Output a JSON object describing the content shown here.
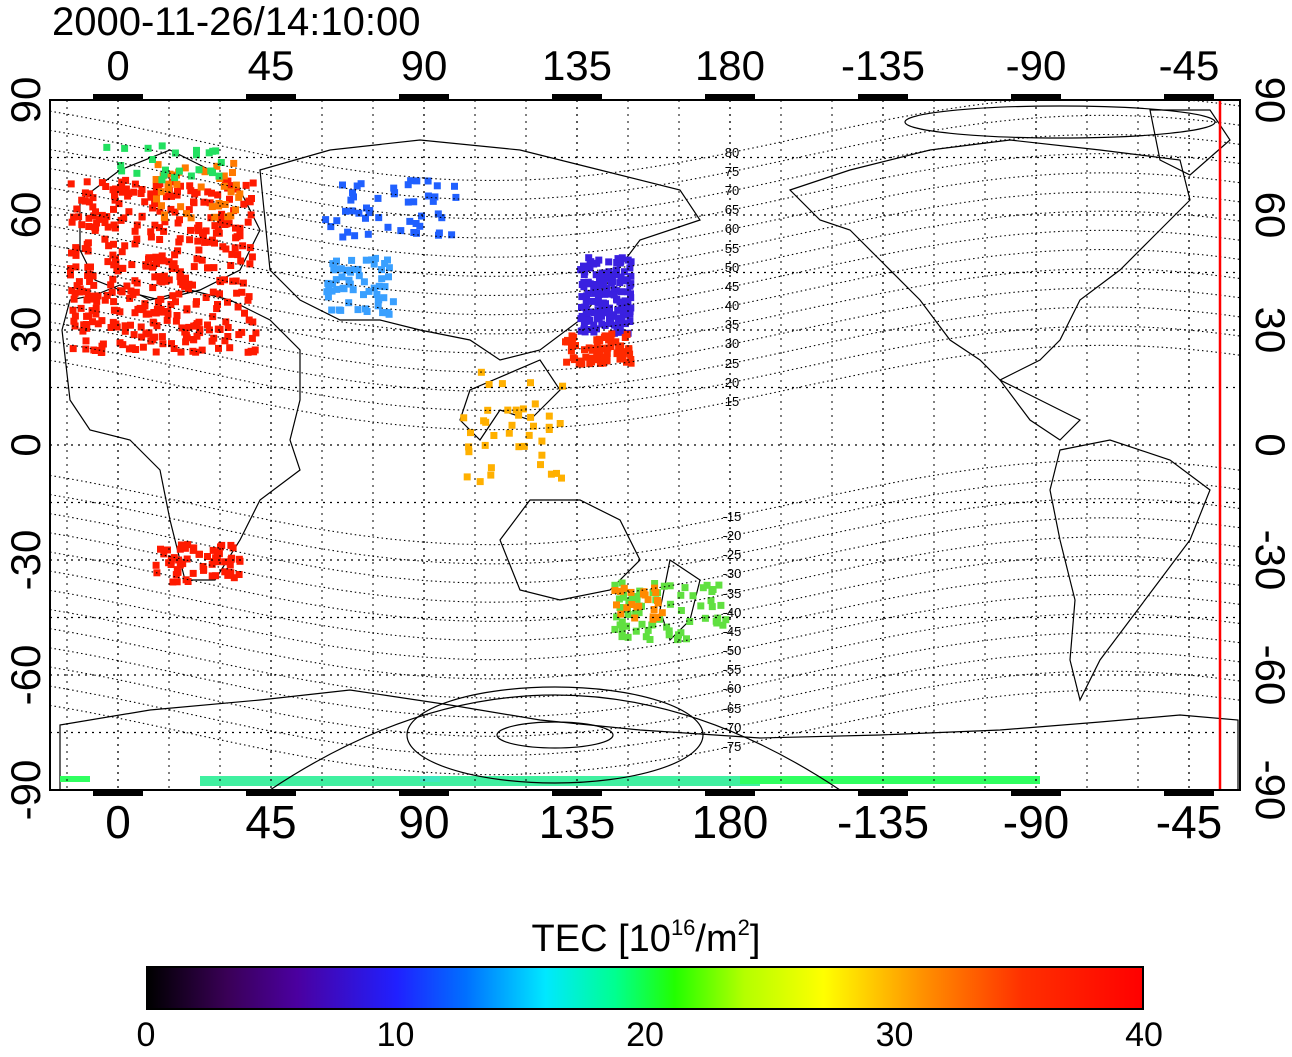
{
  "title": "2000-11-26/14:10:00",
  "map": {
    "top_lon_ticks": [
      "0",
      "45",
      "90",
      "135",
      "180",
      "-135",
      "-90",
      "-45"
    ],
    "bottom_lon_ticks": [
      "0",
      "45",
      "90",
      "135",
      "180",
      "-135",
      "-90",
      "-45"
    ],
    "lat_ticks_left": [
      "90",
      "60",
      "30",
      "0",
      "-30",
      "-60",
      "-90"
    ],
    "lat_ticks_right": [
      "90",
      "60",
      "30",
      "0",
      "-30",
      "-60",
      "-90"
    ],
    "magnetic_lat_labels": [
      "80",
      "75",
      "70",
      "65",
      "60",
      "55",
      "50",
      "45",
      "40",
      "35",
      "30",
      "25",
      "20",
      "15",
      "-15",
      "-20",
      "-25",
      "-30",
      "-35",
      "-40",
      "-45",
      "-50",
      "-55",
      "-60",
      "-65",
      "-70",
      "-75"
    ],
    "lon_range": [
      -20,
      330
    ],
    "lat_range": [
      -90,
      90
    ],
    "grid": true,
    "terminator_color": "#ff0000"
  },
  "colorbar": {
    "label_prefix": "TEC  [10",
    "label_exp1": "16",
    "label_mid": "/m",
    "label_exp2": "2",
    "label_suffix": "]",
    "ticks": [
      "0",
      "10",
      "20",
      "30",
      "40"
    ],
    "range": [
      0,
      40
    ]
  }
}
